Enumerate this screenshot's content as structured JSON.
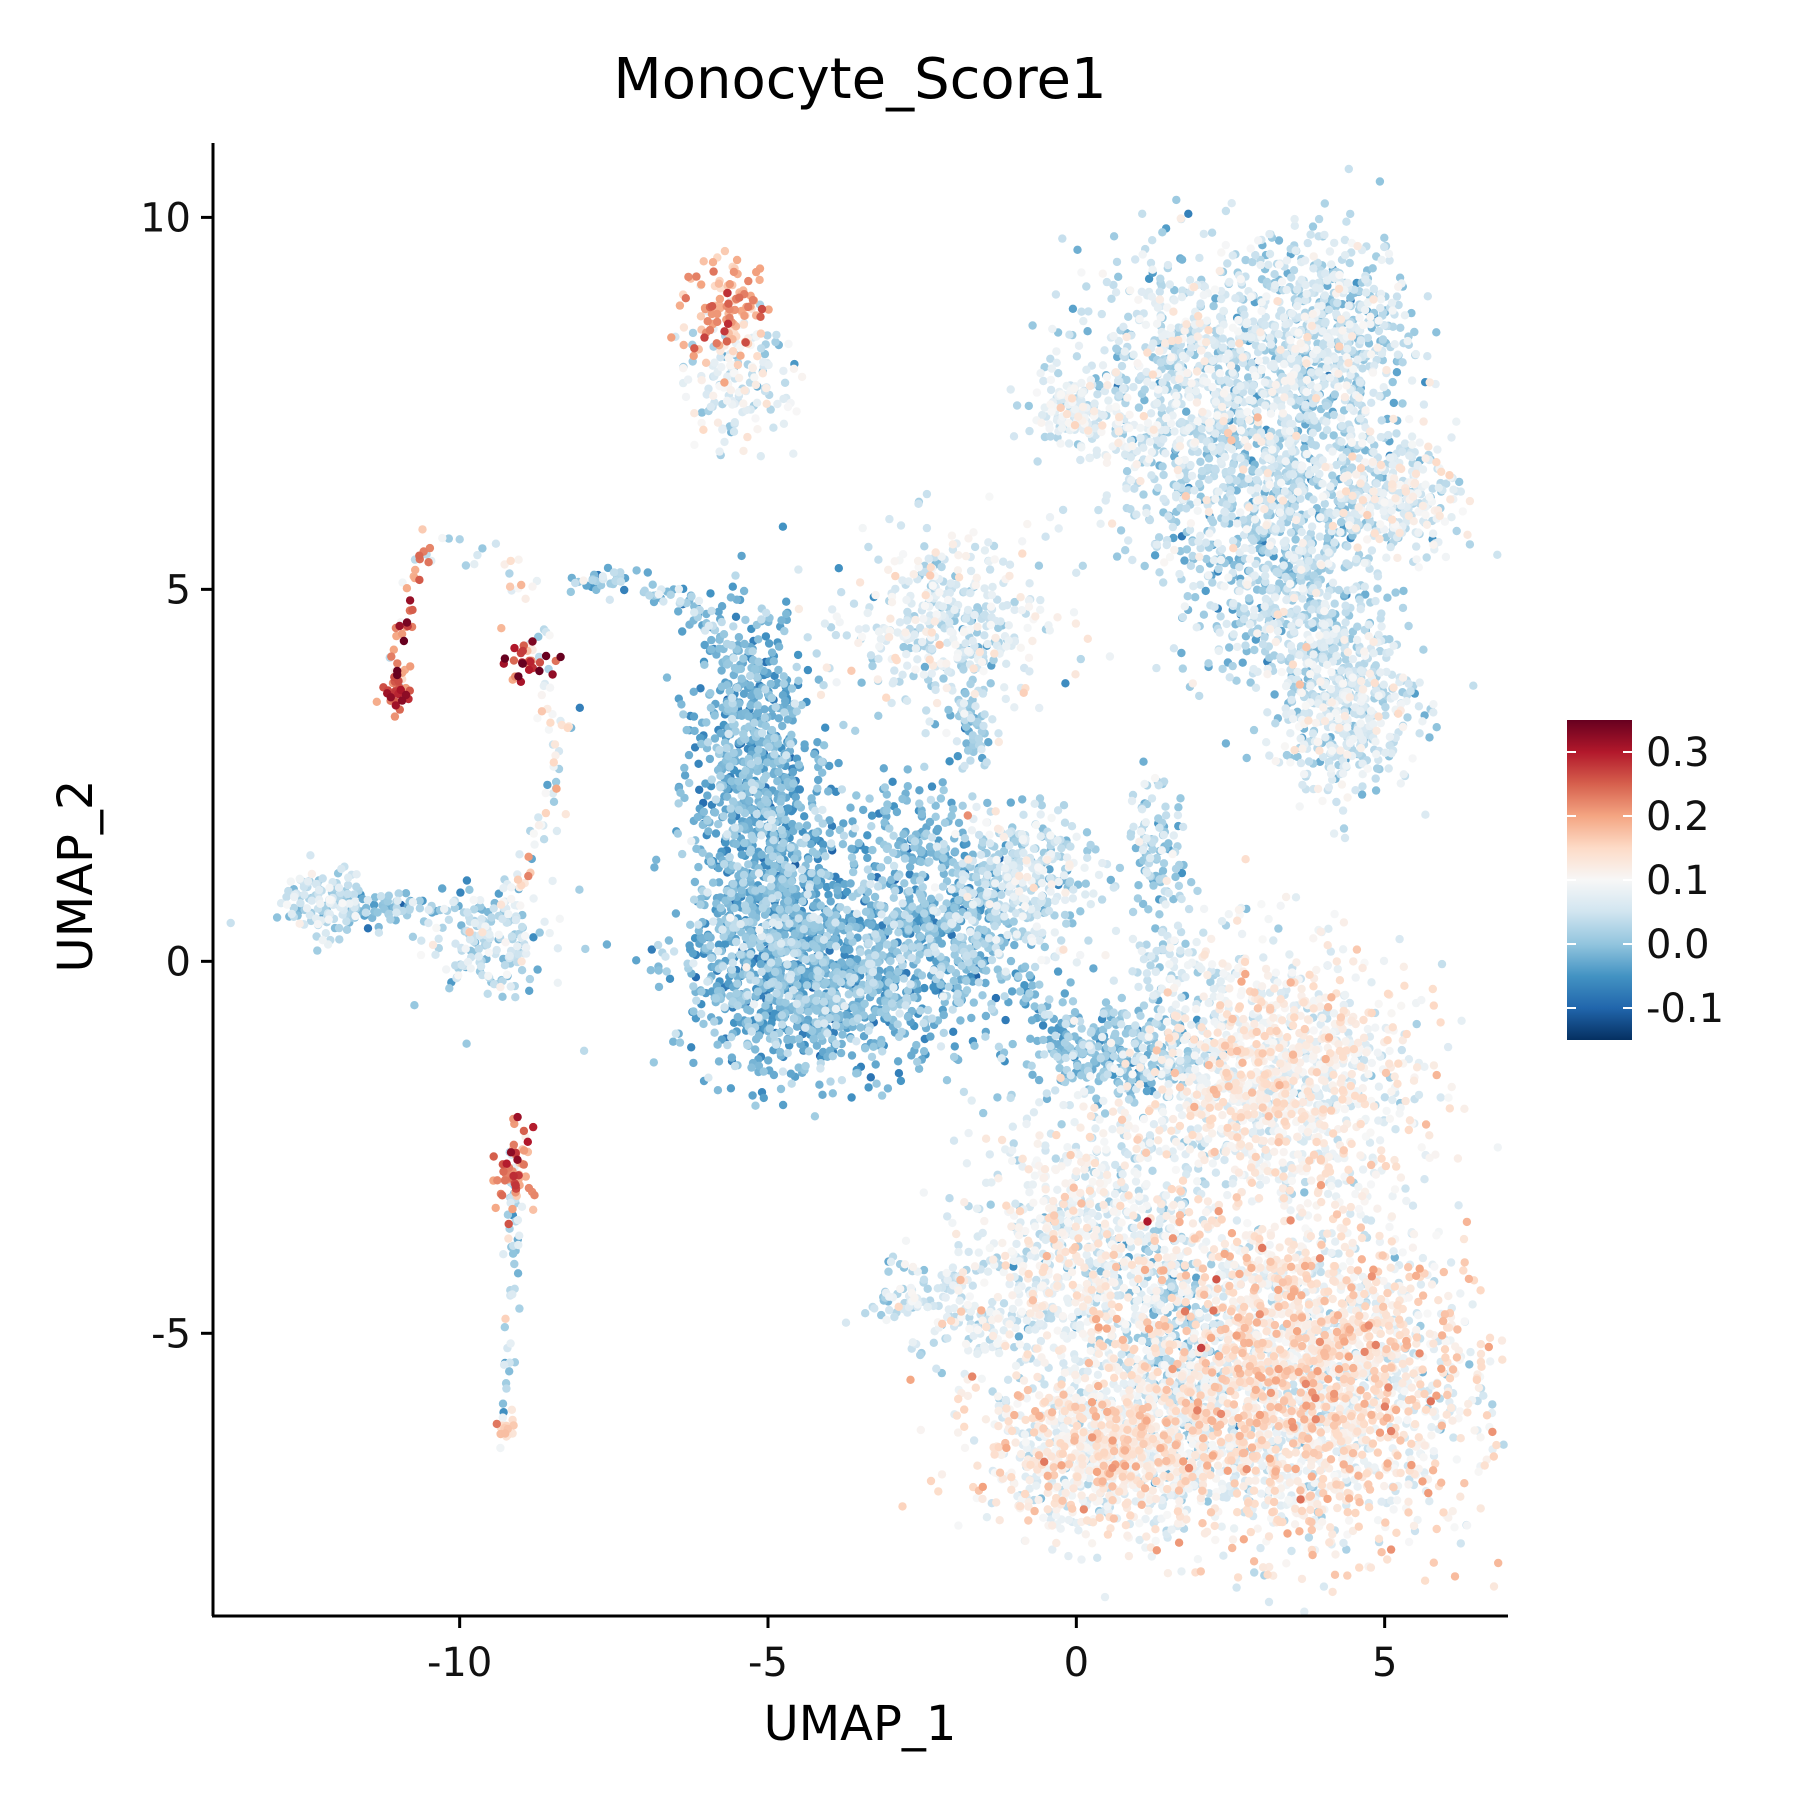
{
  "chart_data": {
    "type": "scatter",
    "title": "Monocyte_Score1",
    "xlabel": "UMAP_1",
    "ylabel": "UMAP_2",
    "xlim": [
      -14,
      7
    ],
    "ylim": [
      -8.8,
      11
    ],
    "xticks": [
      -10,
      -5,
      0,
      5
    ],
    "xtick_labels": [
      "-10",
      "-5",
      "0",
      "5"
    ],
    "yticks": [
      10,
      5,
      0,
      -5
    ],
    "ytick_labels": [
      "10",
      "5",
      "0",
      "-5"
    ],
    "grid": false,
    "legend_position": "right",
    "colorbar": {
      "min": -0.15,
      "max": 0.35,
      "ticks": [
        0.3,
        0.2,
        0.1,
        0.0,
        -0.1
      ],
      "tick_labels": [
        "0.3",
        "0.2",
        "0.1",
        "0.0",
        "-0.1"
      ],
      "colors": [
        "#053061",
        "#2166ac",
        "#4393c3",
        "#92c5de",
        "#d1e5f0",
        "#f7f7f7",
        "#fddbc7",
        "#f4a582",
        "#d6604d",
        "#b2182b",
        "#67001f"
      ]
    },
    "clusters": [
      {
        "cx": -12.2,
        "cy": 0.8,
        "sx": 0.35,
        "sy": 0.25,
        "n": 110,
        "mean": 0.05,
        "sd": 0.03
      },
      {
        "cx": -11.0,
        "cy": 0.7,
        "sx": 0.8,
        "sy": 0.12,
        "n": 90,
        "mean": 0.0,
        "sd": 0.03
      },
      {
        "cx": -9.6,
        "cy": 0.3,
        "sx": 0.5,
        "sy": 0.35,
        "n": 170,
        "mean": 0.04,
        "sd": 0.04
      },
      {
        "cx": -5.7,
        "cy": 8.8,
        "sx": 0.35,
        "sy": 0.35,
        "n": 120,
        "mean": 0.19,
        "sd": 0.04
      },
      {
        "cx": -5.5,
        "cy": 7.8,
        "sx": 0.45,
        "sy": 0.45,
        "n": 150,
        "mean": 0.06,
        "sd": 0.04
      },
      {
        "cx": -2.1,
        "cy": 4.5,
        "sx": 0.8,
        "sy": 0.6,
        "n": 420,
        "mean": 0.06,
        "sd": 0.04
      },
      {
        "cx": -1.6,
        "cy": 3.3,
        "sx": 0.15,
        "sy": 0.5,
        "n": 40,
        "mean": 0.02,
        "sd": 0.03
      },
      {
        "cx": -5.3,
        "cy": 3.2,
        "sx": 0.45,
        "sy": 0.8,
        "n": 420,
        "mean": -0.02,
        "sd": 0.03
      },
      {
        "cx": -5.0,
        "cy": 1.0,
        "sx": 0.6,
        "sy": 1.0,
        "n": 900,
        "mean": -0.02,
        "sd": 0.035
      },
      {
        "cx": -4.0,
        "cy": -0.3,
        "sx": 1.2,
        "sy": 0.6,
        "n": 950,
        "mean": -0.015,
        "sd": 0.035
      },
      {
        "cx": -2.8,
        "cy": 1.3,
        "sx": 0.6,
        "sy": 0.6,
        "n": 250,
        "mean": -0.01,
        "sd": 0.03
      },
      {
        "cx": -1.8,
        "cy": 0.5,
        "sx": 0.5,
        "sy": 0.6,
        "n": 250,
        "mean": 0.0,
        "sd": 0.035
      },
      {
        "cx": -0.8,
        "cy": 1.1,
        "sx": 0.55,
        "sy": 0.45,
        "n": 330,
        "mean": 0.045,
        "sd": 0.04
      },
      {
        "cx": 1.3,
        "cy": 1.5,
        "sx": 0.25,
        "sy": 0.5,
        "n": 110,
        "mean": 0.03,
        "sd": 0.03
      },
      {
        "cx": 0.7,
        "cy": -1.2,
        "sx": 0.8,
        "sy": 0.35,
        "n": 260,
        "mean": 0.0,
        "sd": 0.03
      },
      {
        "cx": 1.5,
        "cy": -0.05,
        "sx": 0.35,
        "sy": 0.25,
        "n": 60,
        "mean": 0.05,
        "sd": 0.03
      },
      {
        "cx": 3.2,
        "cy": -1.6,
        "sx": 1.1,
        "sy": 0.9,
        "n": 1300,
        "mean": 0.1,
        "sd": 0.035
      },
      {
        "cx": 0.2,
        "cy": -3.8,
        "sx": 0.9,
        "sy": 0.9,
        "n": 800,
        "mean": 0.08,
        "sd": 0.04
      },
      {
        "cx": 1.6,
        "cy": -5.3,
        "sx": 0.4,
        "sy": 0.8,
        "n": 250,
        "mean": 0.0,
        "sd": 0.03
      },
      {
        "cx": 0.5,
        "cy": -6.5,
        "sx": 1.0,
        "sy": 0.55,
        "n": 1100,
        "mean": 0.1,
        "sd": 0.04
      },
      {
        "cx": 3.6,
        "cy": -5.6,
        "sx": 1.4,
        "sy": 1.1,
        "n": 2600,
        "mean": 0.11,
        "sd": 0.045
      },
      {
        "cx": -2.8,
        "cy": -4.6,
        "sx": 0.2,
        "sy": 0.15,
        "n": 30,
        "mean": 0.05,
        "sd": 0.03
      },
      {
        "cx": -1.5,
        "cy": -4.8,
        "sx": 0.8,
        "sy": 0.35,
        "n": 150,
        "mean": 0.07,
        "sd": 0.04
      },
      {
        "cx": 2.3,
        "cy": 8.0,
        "sx": 1.2,
        "sy": 0.8,
        "n": 900,
        "mean": 0.05,
        "sd": 0.04
      },
      {
        "cx": 4.2,
        "cy": 8.5,
        "sx": 0.6,
        "sy": 0.6,
        "n": 450,
        "mean": 0.04,
        "sd": 0.04
      },
      {
        "cx": 3.0,
        "cy": 6.5,
        "sx": 1.2,
        "sy": 0.6,
        "n": 650,
        "mean": 0.03,
        "sd": 0.04
      },
      {
        "cx": 5.2,
        "cy": 6.3,
        "sx": 0.5,
        "sy": 0.4,
        "n": 280,
        "mean": 0.07,
        "sd": 0.04
      },
      {
        "cx": 3.2,
        "cy": 5.0,
        "sx": 0.8,
        "sy": 0.6,
        "n": 420,
        "mean": 0.03,
        "sd": 0.04
      },
      {
        "cx": 4.3,
        "cy": 3.5,
        "sx": 0.6,
        "sy": 0.6,
        "n": 550,
        "mean": 0.05,
        "sd": 0.035
      },
      {
        "cx": -0.2,
        "cy": 7.4,
        "sx": 0.3,
        "sy": 0.25,
        "n": 80,
        "mean": 0.07,
        "sd": 0.03
      },
      {
        "cx": -11.0,
        "cy": 3.7,
        "sx": 0.15,
        "sy": 0.15,
        "n": 30,
        "mean": 0.27,
        "sd": 0.05
      },
      {
        "cx": -8.9,
        "cy": 4.0,
        "sx": 0.18,
        "sy": 0.15,
        "n": 30,
        "mean": 0.27,
        "sd": 0.05
      },
      {
        "cx": -9.1,
        "cy": -2.8,
        "sx": 0.15,
        "sy": 0.3,
        "n": 55,
        "mean": 0.23,
        "sd": 0.04
      },
      {
        "cx": -9.3,
        "cy": -6.3,
        "sx": 0.1,
        "sy": 0.1,
        "n": 18,
        "mean": 0.15,
        "sd": 0.03
      }
    ],
    "paths": [
      {
        "points": [
          [
            -10.6,
            5.6
          ],
          [
            -9.8,
            5.5
          ],
          [
            -9.0,
            5.2
          ],
          [
            -8.8,
            4.6
          ],
          [
            -8.5,
            3.6
          ],
          [
            -8.3,
            3.0
          ],
          [
            -8.6,
            2.0
          ],
          [
            -9.0,
            1.2
          ],
          [
            -9.4,
            0.6
          ]
        ],
        "n": 90,
        "spread": 0.12,
        "mean": 0.08,
        "sd": 0.06
      },
      {
        "points": [
          [
            -10.6,
            5.6
          ],
          [
            -10.8,
            4.8
          ],
          [
            -11.0,
            4.2
          ],
          [
            -11.0,
            3.5
          ]
        ],
        "n": 35,
        "spread": 0.1,
        "mean": 0.2,
        "sd": 0.06
      },
      {
        "points": [
          [
            -8.2,
            5.1
          ],
          [
            -7.3,
            5.1
          ],
          [
            -6.5,
            4.9
          ],
          [
            -6.0,
            4.6
          ],
          [
            -5.6,
            4.0
          ]
        ],
        "n": 90,
        "spread": 0.1,
        "mean": 0.0,
        "sd": 0.04
      },
      {
        "points": [
          [
            -1.0,
            -0.1
          ],
          [
            -0.5,
            -0.6
          ],
          [
            0.0,
            -1.3
          ],
          [
            0.8,
            -1.6
          ],
          [
            1.8,
            -1.4
          ]
        ],
        "n": 120,
        "spread": 0.15,
        "mean": -0.01,
        "sd": 0.03
      },
      {
        "points": [
          [
            -3.0,
            -4.0
          ],
          [
            -2.4,
            -4.2
          ],
          [
            -1.8,
            -4.3
          ]
        ],
        "n": 30,
        "spread": 0.08,
        "mean": 0.05,
        "sd": 0.03
      },
      {
        "points": [
          [
            -9.1,
            -2.4
          ],
          [
            -9.1,
            -3.6
          ],
          [
            -9.2,
            -4.8
          ],
          [
            -9.2,
            -5.6
          ],
          [
            -9.3,
            -6.3
          ]
        ],
        "n": 55,
        "spread": 0.06,
        "mean": 0.04,
        "sd": 0.05
      },
      {
        "points": [
          [
            -2.0,
            3.5
          ],
          [
            -1.7,
            3.0
          ],
          [
            -1.5,
            2.6
          ]
        ],
        "n": 30,
        "spread": 0.08,
        "mean": 0.01,
        "sd": 0.03
      },
      {
        "points": [
          [
            -0.3,
            7.6
          ],
          [
            0.4,
            7.3
          ],
          [
            1.0,
            7.0
          ],
          [
            1.8,
            7.0
          ]
        ],
        "n": 70,
        "spread": 0.12,
        "mean": 0.07,
        "sd": 0.03
      },
      {
        "points": [
          [
            3.7,
            5.6
          ],
          [
            3.9,
            4.8
          ],
          [
            4.1,
            4.2
          ]
        ],
        "n": 50,
        "spread": 0.12,
        "mean": 0.02,
        "sd": 0.03
      }
    ]
  }
}
